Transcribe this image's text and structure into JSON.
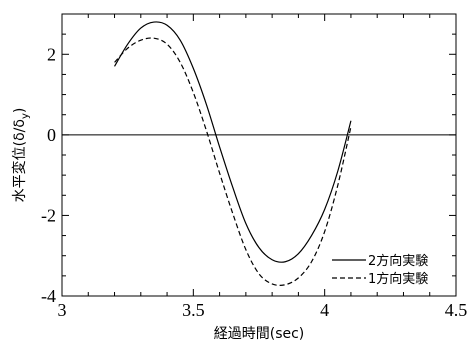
{
  "chart_data": {
    "type": "line",
    "xlabel": "経過時間(sec)",
    "ylabel": "水平変位(δ/δ_y)",
    "xlim": [
      3,
      4.5
    ],
    "ylim": [
      -4,
      3
    ],
    "xticks": [
      3,
      3.5,
      4,
      4.5
    ],
    "xtick_labels": [
      "3",
      "3.5",
      "4",
      "4.5"
    ],
    "yticks": [
      -4,
      -2,
      0,
      2
    ],
    "ytick_labels": [
      "-4",
      "-2",
      "0",
      "2"
    ],
    "zero_line": true,
    "grid": false,
    "legend_position": "bottom-right",
    "series": [
      {
        "name": "2方向実験",
        "style": "solid",
        "color": "#000000",
        "points": [
          [
            3.2,
            1.7
          ],
          [
            3.25,
            2.25
          ],
          [
            3.3,
            2.65
          ],
          [
            3.35,
            2.8
          ],
          [
            3.4,
            2.72
          ],
          [
            3.45,
            2.35
          ],
          [
            3.5,
            1.65
          ],
          [
            3.55,
            0.75
          ],
          [
            3.6,
            -0.3
          ],
          [
            3.65,
            -1.3
          ],
          [
            3.7,
            -2.2
          ],
          [
            3.75,
            -2.8
          ],
          [
            3.8,
            -3.1
          ],
          [
            3.85,
            -3.15
          ],
          [
            3.9,
            -2.95
          ],
          [
            3.95,
            -2.5
          ],
          [
            4.0,
            -1.85
          ],
          [
            4.05,
            -0.9
          ],
          [
            4.1,
            0.35
          ]
        ]
      },
      {
        "name": "1方向実験",
        "style": "dashed",
        "color": "#000000",
        "points": [
          [
            3.2,
            1.8
          ],
          [
            3.25,
            2.15
          ],
          [
            3.3,
            2.35
          ],
          [
            3.35,
            2.4
          ],
          [
            3.4,
            2.25
          ],
          [
            3.45,
            1.8
          ],
          [
            3.5,
            1.05
          ],
          [
            3.55,
            0.1
          ],
          [
            3.6,
            -0.95
          ],
          [
            3.65,
            -1.95
          ],
          [
            3.7,
            -2.85
          ],
          [
            3.75,
            -3.45
          ],
          [
            3.8,
            -3.7
          ],
          [
            3.85,
            -3.72
          ],
          [
            3.9,
            -3.55
          ],
          [
            3.95,
            -3.15
          ],
          [
            4.0,
            -2.4
          ],
          [
            4.05,
            -1.25
          ],
          [
            4.1,
            0.2
          ]
        ]
      }
    ]
  }
}
